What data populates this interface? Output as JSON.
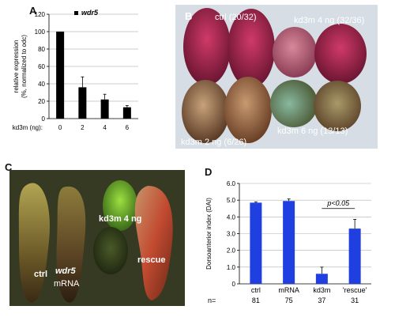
{
  "panels": {
    "a": "A",
    "b": "B",
    "c": "C",
    "d": "D"
  },
  "panel_b": {
    "labels": {
      "ctrl": "ctrl (20/32)",
      "kd3m4": "kd3m 4 ng (32/36)",
      "kd3m6": "kd3m 6 ng (13/13)",
      "kd3m2": "kd3m 2 ng (6/26)"
    }
  },
  "panel_c": {
    "labels": {
      "kd3m4": "kd3m 4 ng",
      "ctrl": "ctrl",
      "wdr5": "wdr5",
      "mrna": "mRNA",
      "rescue": "rescue"
    }
  },
  "chart_data": [
    {
      "type": "bar",
      "legend": "wdr5",
      "categories": [
        "0",
        "2",
        "4",
        "6"
      ],
      "values": [
        100,
        36,
        22,
        13
      ],
      "errors": [
        0,
        12,
        6,
        2
      ],
      "ylabel": "relative expression",
      "ylabel2": "(%, normalized to odc)",
      "xlabel_prefix": "kd3m (ng):",
      "ylim": [
        0,
        120
      ],
      "yticks": [
        "0",
        "20",
        "40",
        "60",
        "80",
        "100",
        "120"
      ],
      "color": "#000000",
      "grid": true
    },
    {
      "type": "bar",
      "categories": [
        "ctrl",
        "mRNA",
        "kd3m",
        "'rescue'"
      ],
      "values": [
        4.85,
        4.95,
        0.6,
        3.3
      ],
      "errors": [
        0.05,
        0.12,
        0.4,
        0.55
      ],
      "n_label": "n=",
      "n_values": [
        "81",
        "75",
        "37",
        "31"
      ],
      "ylabel": "Dorsoanterior index (DAI)",
      "ylim": [
        0,
        6
      ],
      "yticks": [
        "0",
        "1.0",
        "2.0",
        "3.0",
        "4.0",
        "5.0",
        "6.0"
      ],
      "annotation": "p<0.05",
      "color": "#1f3fe0",
      "grid": true
    }
  ]
}
